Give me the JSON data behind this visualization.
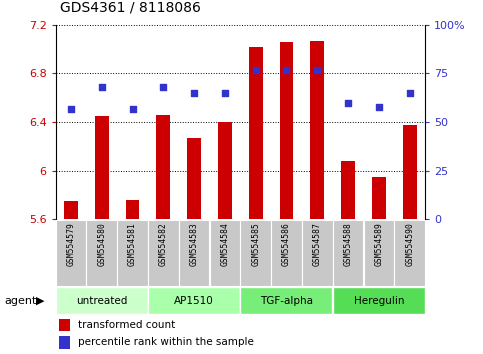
{
  "title": "GDS4361 / 8118086",
  "samples": [
    "GSM554579",
    "GSM554580",
    "GSM554581",
    "GSM554582",
    "GSM554583",
    "GSM554584",
    "GSM554585",
    "GSM554586",
    "GSM554587",
    "GSM554588",
    "GSM554589",
    "GSM554590"
  ],
  "bar_values": [
    5.75,
    6.45,
    5.76,
    6.46,
    6.27,
    6.4,
    7.02,
    7.06,
    7.07,
    6.08,
    5.95,
    6.38
  ],
  "pct_values": [
    57,
    68,
    57,
    68,
    65,
    65,
    77,
    77,
    77,
    60,
    58,
    65
  ],
  "bar_color": "#cc0000",
  "pct_color": "#3333cc",
  "ylim_left": [
    5.6,
    7.2
  ],
  "ylim_right": [
    0,
    100
  ],
  "yticks_left": [
    5.6,
    6.0,
    6.4,
    6.8,
    7.2
  ],
  "ytick_labels_left": [
    "5.6",
    "6",
    "6.4",
    "6.8",
    "7.2"
  ],
  "yticks_right": [
    0,
    25,
    50,
    75,
    100
  ],
  "ytick_labels_right": [
    "0",
    "25",
    "50",
    "75",
    "100%"
  ],
  "agent_groups": [
    {
      "label": "untreated",
      "start": 0,
      "end": 3,
      "color": "#ccffcc"
    },
    {
      "label": "AP1510",
      "start": 3,
      "end": 6,
      "color": "#aaffaa"
    },
    {
      "label": "TGF-alpha",
      "start": 6,
      "end": 9,
      "color": "#77ee77"
    },
    {
      "label": "Heregulin",
      "start": 9,
      "end": 12,
      "color": "#55dd55"
    }
  ],
  "bar_width": 0.45,
  "bg_color": "#ffffff",
  "sample_bg": "#c8c8c8",
  "tick_color_left": "#cc0000",
  "tick_color_right": "#3333cc",
  "legend_bar_label": "transformed count",
  "legend_pct_label": "percentile rank within the sample"
}
